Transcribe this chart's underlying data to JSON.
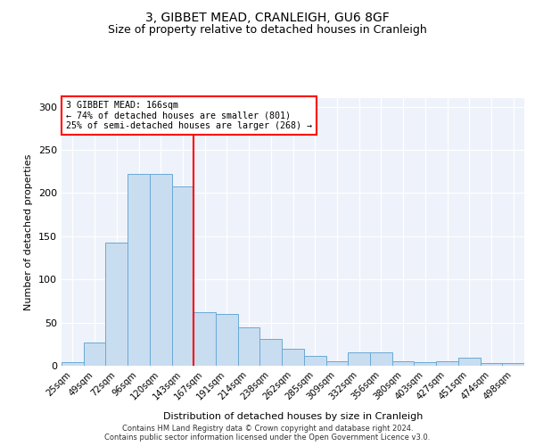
{
  "title": "3, GIBBET MEAD, CRANLEIGH, GU6 8GF",
  "subtitle": "Size of property relative to detached houses in Cranleigh",
  "xlabel": "Distribution of detached houses by size in Cranleigh",
  "ylabel": "Number of detached properties",
  "categories": [
    "25sqm",
    "49sqm",
    "72sqm",
    "96sqm",
    "120sqm",
    "143sqm",
    "167sqm",
    "191sqm",
    "214sqm",
    "238sqm",
    "262sqm",
    "285sqm",
    "309sqm",
    "332sqm",
    "356sqm",
    "380sqm",
    "403sqm",
    "427sqm",
    "451sqm",
    "474sqm",
    "498sqm"
  ],
  "values": [
    4,
    27,
    143,
    222,
    222,
    208,
    62,
    60,
    44,
    31,
    20,
    11,
    5,
    16,
    16,
    5,
    4,
    5,
    9,
    3,
    3
  ],
  "bar_color": "#c9ddf0",
  "bar_edge_color": "#6aaad4",
  "annotation_line_index": 6,
  "annotation_text_line1": "3 GIBBET MEAD: 166sqm",
  "annotation_text_line2": "← 74% of detached houses are smaller (801)",
  "annotation_text_line3": "25% of semi-detached houses are larger (268) →",
  "annotation_box_color": "red",
  "marker_line_color": "red",
  "footnote1": "Contains HM Land Registry data © Crown copyright and database right 2024.",
  "footnote2": "Contains public sector information licensed under the Open Government Licence v3.0.",
  "ylim": [
    0,
    310
  ],
  "yticks": [
    0,
    50,
    100,
    150,
    200,
    250,
    300
  ],
  "background_color": "#eef2fa"
}
